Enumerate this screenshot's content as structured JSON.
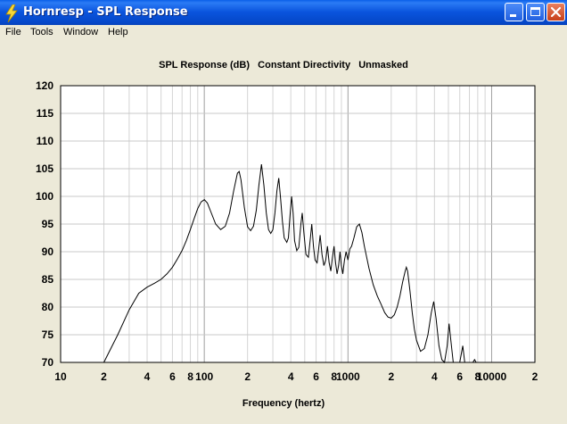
{
  "window": {
    "title": "Hornresp - SPL Response",
    "app_icon": "lightning-bolt-icon",
    "controls": [
      "minimize-icon",
      "maximize-icon",
      "close-icon"
    ]
  },
  "menu": {
    "items": [
      {
        "label": "File"
      },
      {
        "label": "Tools"
      },
      {
        "label": "Window"
      },
      {
        "label": "Help"
      }
    ]
  },
  "chart_data": {
    "type": "line",
    "title": "SPL Response (dB)   Constant Directivity   Unmasked",
    "xlabel": "Frequency (hertz)",
    "ylabel": "",
    "x_scale": "log",
    "xlim": [
      10,
      20000
    ],
    "ylim": [
      70,
      120
    ],
    "grid": true,
    "legend": "none",
    "line_color": "#000000",
    "y_ticks": [
      "70",
      "75",
      "80",
      "85",
      "90",
      "95",
      "100",
      "105",
      "110",
      "115",
      "120"
    ],
    "x_tick_labels": [
      {
        "value": 10,
        "label": "10"
      },
      {
        "value": 20,
        "label": "2"
      },
      {
        "value": 40,
        "label": "4"
      },
      {
        "value": 60,
        "label": "6"
      },
      {
        "value": 80,
        "label": "8"
      },
      {
        "value": 100,
        "label": "100"
      },
      {
        "value": 200,
        "label": "2"
      },
      {
        "value": 400,
        "label": "4"
      },
      {
        "value": 600,
        "label": "6"
      },
      {
        "value": 800,
        "label": "8"
      },
      {
        "value": 1000,
        "label": "1000"
      },
      {
        "value": 2000,
        "label": "2"
      },
      {
        "value": 4000,
        "label": "4"
      },
      {
        "value": 6000,
        "label": "6"
      },
      {
        "value": 8000,
        "label": "8"
      },
      {
        "value": 10000,
        "label": "10000"
      },
      {
        "value": 20000,
        "label": "2"
      }
    ],
    "series": [
      {
        "values": [
          [
            20,
            70
          ],
          [
            25,
            75
          ],
          [
            30,
            79.5
          ],
          [
            35,
            82.5
          ],
          [
            40,
            83.6
          ],
          [
            45,
            84.3
          ],
          [
            50,
            85
          ],
          [
            55,
            86
          ],
          [
            60,
            87.2
          ],
          [
            65,
            88.7
          ],
          [
            70,
            90.2
          ],
          [
            75,
            92
          ],
          [
            80,
            94
          ],
          [
            85,
            96
          ],
          [
            90,
            97.8
          ],
          [
            95,
            99
          ],
          [
            100,
            99.4
          ],
          [
            105,
            98.8
          ],
          [
            110,
            97.5
          ],
          [
            120,
            95
          ],
          [
            130,
            94
          ],
          [
            140,
            94.6
          ],
          [
            150,
            97
          ],
          [
            160,
            101
          ],
          [
            170,
            104.2
          ],
          [
            175,
            104.5
          ],
          [
            180,
            103
          ],
          [
            190,
            98
          ],
          [
            200,
            94.5
          ],
          [
            210,
            93.8
          ],
          [
            220,
            94.6
          ],
          [
            230,
            97.5
          ],
          [
            240,
            102
          ],
          [
            250,
            105.8
          ],
          [
            260,
            102
          ],
          [
            270,
            97
          ],
          [
            280,
            94
          ],
          [
            290,
            93.3
          ],
          [
            300,
            94
          ],
          [
            310,
            97
          ],
          [
            320,
            101
          ],
          [
            330,
            103.3
          ],
          [
            340,
            99.5
          ],
          [
            350,
            95.5
          ],
          [
            360,
            92.5
          ],
          [
            375,
            91.7
          ],
          [
            385,
            92.5
          ],
          [
            395,
            96.5
          ],
          [
            405,
            100
          ],
          [
            415,
            97
          ],
          [
            425,
            92
          ],
          [
            440,
            90.2
          ],
          [
            455,
            90.8
          ],
          [
            470,
            95
          ],
          [
            480,
            97
          ],
          [
            495,
            93
          ],
          [
            510,
            89.5
          ],
          [
            530,
            89
          ],
          [
            550,
            93
          ],
          [
            560,
            95
          ],
          [
            575,
            91
          ],
          [
            590,
            88.5
          ],
          [
            610,
            88
          ],
          [
            625,
            90.5
          ],
          [
            640,
            93
          ],
          [
            660,
            89.5
          ],
          [
            680,
            87.5
          ],
          [
            700,
            88.5
          ],
          [
            720,
            91
          ],
          [
            740,
            88
          ],
          [
            760,
            86.5
          ],
          [
            780,
            89
          ],
          [
            800,
            91
          ],
          [
            820,
            88
          ],
          [
            840,
            86
          ],
          [
            860,
            87.5
          ],
          [
            880,
            90
          ],
          [
            900,
            87.5
          ],
          [
            920,
            86
          ],
          [
            945,
            88.5
          ],
          [
            970,
            90
          ],
          [
            1000,
            88.5
          ],
          [
            1030,
            90.5
          ],
          [
            1060,
            91
          ],
          [
            1100,
            92.5
          ],
          [
            1150,
            94.5
          ],
          [
            1200,
            95
          ],
          [
            1250,
            93.5
          ],
          [
            1300,
            91
          ],
          [
            1400,
            87
          ],
          [
            1500,
            84
          ],
          [
            1600,
            82
          ],
          [
            1700,
            80.5
          ],
          [
            1800,
            79
          ],
          [
            1900,
            78.2
          ],
          [
            2000,
            78
          ],
          [
            2100,
            78.6
          ],
          [
            2200,
            80
          ],
          [
            2300,
            82
          ],
          [
            2400,
            84.5
          ],
          [
            2500,
            86.5
          ],
          [
            2550,
            87.2
          ],
          [
            2600,
            86.5
          ],
          [
            2700,
            83
          ],
          [
            2800,
            79
          ],
          [
            2900,
            76
          ],
          [
            3000,
            74
          ],
          [
            3200,
            72
          ],
          [
            3400,
            72.5
          ],
          [
            3600,
            75
          ],
          [
            3800,
            79
          ],
          [
            3950,
            81
          ],
          [
            4100,
            78
          ],
          [
            4300,
            73
          ],
          [
            4500,
            70.5
          ],
          [
            4700,
            70
          ],
          [
            4900,
            73
          ],
          [
            5050,
            77
          ],
          [
            5200,
            74
          ],
          [
            5400,
            70
          ],
          [
            5600,
            69.5
          ],
          [
            6000,
            70
          ],
          [
            6300,
            73
          ],
          [
            6500,
            70
          ],
          [
            6800,
            69
          ],
          [
            7400,
            69.5
          ],
          [
            7600,
            70.5
          ],
          [
            7800,
            69.5
          ]
        ]
      }
    ]
  }
}
